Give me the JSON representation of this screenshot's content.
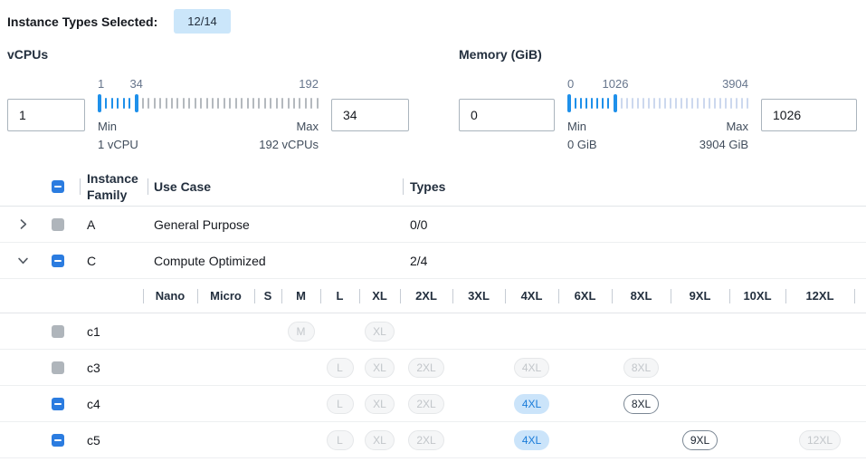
{
  "topbar": {
    "label": "Instance Types Selected:",
    "badge": "12/14"
  },
  "filters": [
    {
      "title": "vCPUs",
      "min_input": "1",
      "max_input": "34",
      "scale": {
        "start": "1",
        "mid": "34",
        "end": "192",
        "mid_pos_pct": 17.5
      },
      "slider": {
        "active_ticks": 5,
        "inactive_ticks": 31,
        "inactive_color": "#b4b9be"
      },
      "min_caption": [
        "Min",
        "1 vCPU"
      ],
      "max_caption": [
        "Max",
        "192 vCPUs"
      ]
    },
    {
      "title": "Memory (GiB)",
      "min_input": "0",
      "max_input": "1026",
      "scale": {
        "start": "0",
        "mid": "1026",
        "end": "3904",
        "mid_pos_pct": 26.5
      },
      "slider": {
        "active_ticks": 7,
        "inactive_ticks": 24,
        "inactive_color": "#ccd8ee"
      },
      "min_caption": [
        "Min",
        "0 GiB"
      ],
      "max_caption": [
        "Max",
        "3904 GiB"
      ]
    }
  ],
  "table": {
    "headers": {
      "family": "Instance Family",
      "use_case": "Use Case",
      "types": "Types"
    },
    "family_rows": [
      {
        "name": "A",
        "use_case": "General Purpose",
        "types": "0/0",
        "checkbox": "gray",
        "expanded": false
      },
      {
        "name": "C",
        "use_case": "Compute Optimized",
        "types": "2/4",
        "checkbox": "indeterminate",
        "expanded": true
      }
    ],
    "size_columns": [
      "Nano",
      "Micro",
      "S",
      "M",
      "L",
      "XL",
      "2XL",
      "3XL",
      "4XL",
      "6XL",
      "8XL",
      "9XL",
      "10XL",
      "12XL"
    ],
    "instance_rows": [
      {
        "name": "c1",
        "checkbox": "gray",
        "badges": [
          {
            "size": "M",
            "state": "disabled"
          },
          {
            "size": "XL",
            "state": "disabled"
          }
        ]
      },
      {
        "name": "c3",
        "checkbox": "gray",
        "badges": [
          {
            "size": "L",
            "state": "disabled"
          },
          {
            "size": "XL",
            "state": "disabled"
          },
          {
            "size": "2XL",
            "state": "disabled"
          },
          {
            "size": "4XL",
            "state": "disabled"
          },
          {
            "size": "8XL",
            "state": "disabled"
          }
        ]
      },
      {
        "name": "c4",
        "checkbox": "indeterminate",
        "badges": [
          {
            "size": "L",
            "state": "disabled"
          },
          {
            "size": "XL",
            "state": "disabled"
          },
          {
            "size": "2XL",
            "state": "disabled"
          },
          {
            "size": "4XL",
            "state": "selected"
          },
          {
            "size": "8XL",
            "state": "enabled"
          }
        ]
      },
      {
        "name": "c5",
        "checkbox": "indeterminate",
        "badges": [
          {
            "size": "L",
            "state": "disabled"
          },
          {
            "size": "XL",
            "state": "disabled"
          },
          {
            "size": "2XL",
            "state": "disabled"
          },
          {
            "size": "4XL",
            "state": "selected"
          },
          {
            "size": "9XL",
            "state": "enabled"
          },
          {
            "size": "12XL",
            "state": "disabled"
          }
        ]
      }
    ]
  },
  "colors": {
    "checkbox_blue": "#2b7ce0",
    "slider_active_blue": "#1e90ea",
    "badge_bg": "#cbe6fa",
    "selected_pill_bg": "#cbe4fa",
    "selected_pill_text": "#1a7cd9"
  }
}
